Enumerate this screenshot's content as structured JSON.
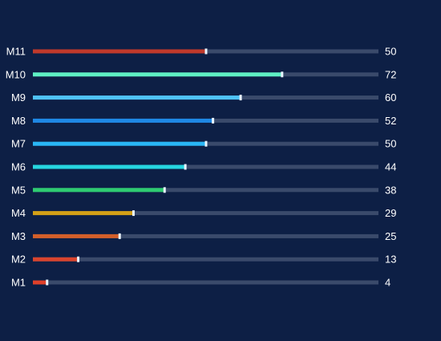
{
  "chart_data": {
    "type": "bar",
    "orientation": "horizontal",
    "title": "",
    "xlabel": "",
    "ylabel": "",
    "xlim": [
      0,
      100
    ],
    "grid": false,
    "legend": "none",
    "categories": [
      "M11",
      "M10",
      "M9",
      "M8",
      "M7",
      "M6",
      "M5",
      "M4",
      "M3",
      "M2",
      "M1"
    ],
    "values": [
      50,
      72,
      60,
      52,
      50,
      44,
      38,
      29,
      25,
      13,
      4
    ],
    "value_labels": [
      "50",
      "72",
      "60",
      "52",
      "50",
      "44",
      "38",
      "29",
      "25",
      "13",
      "4"
    ],
    "bar_colors": [
      "#c0392b",
      "#5ef0c4",
      "#4fc3f7",
      "#1e88e5",
      "#29b6f6",
      "#26d6e0",
      "#2ecc71",
      "#d4a017",
      "#d35f2a",
      "#d9442e",
      "#e0402a"
    ],
    "track_color": "#3a4a6b",
    "background_color": "#0d1f45",
    "marker_color": "#e8f4ff"
  }
}
